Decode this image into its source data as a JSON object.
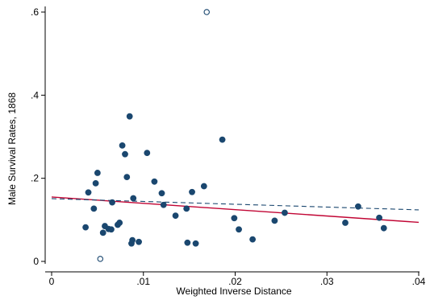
{
  "chart_data": {
    "type": "scatter",
    "xlabel": "Weighted Inverse Distance",
    "ylabel": "Male Survival Rates, 1868",
    "xlim": [
      0,
      0.04
    ],
    "ylim": [
      0,
      0.6
    ],
    "x_ticks": [
      {
        "value": 0,
        "label": "0"
      },
      {
        "value": 0.01,
        "label": ".01"
      },
      {
        "value": 0.02,
        "label": ".02"
      },
      {
        "value": 0.03,
        "label": ".03"
      },
      {
        "value": 0.04,
        "label": ".04"
      }
    ],
    "y_ticks": [
      {
        "value": 0,
        "label": "0"
      },
      {
        "value": 0.2,
        "label": ".2"
      },
      {
        "value": 0.4,
        "label": ".4"
      },
      {
        "value": 0.6,
        "label": ".6"
      }
    ],
    "grid": false,
    "colors": {
      "points": "#1a476f",
      "solid_fit": "#c10534",
      "dashed_fit": "#1a476f"
    },
    "points": [
      {
        "x": 0.0037,
        "y": 0.082
      },
      {
        "x": 0.004,
        "y": 0.166
      },
      {
        "x": 0.0046,
        "y": 0.127
      },
      {
        "x": 0.0048,
        "y": 0.188
      },
      {
        "x": 0.005,
        "y": 0.213
      },
      {
        "x": 0.0056,
        "y": 0.069
      },
      {
        "x": 0.0058,
        "y": 0.085
      },
      {
        "x": 0.0062,
        "y": 0.078
      },
      {
        "x": 0.0065,
        "y": 0.077
      },
      {
        "x": 0.0066,
        "y": 0.142
      },
      {
        "x": 0.0072,
        "y": 0.088
      },
      {
        "x": 0.0074,
        "y": 0.093
      },
      {
        "x": 0.0077,
        "y": 0.279
      },
      {
        "x": 0.008,
        "y": 0.258
      },
      {
        "x": 0.0082,
        "y": 0.203
      },
      {
        "x": 0.0085,
        "y": 0.349
      },
      {
        "x": 0.0087,
        "y": 0.043
      },
      {
        "x": 0.0088,
        "y": 0.051
      },
      {
        "x": 0.0089,
        "y": 0.152
      },
      {
        "x": 0.0095,
        "y": 0.047
      },
      {
        "x": 0.0104,
        "y": 0.261
      },
      {
        "x": 0.0112,
        "y": 0.192
      },
      {
        "x": 0.012,
        "y": 0.164
      },
      {
        "x": 0.0122,
        "y": 0.136
      },
      {
        "x": 0.0135,
        "y": 0.11
      },
      {
        "x": 0.0147,
        "y": 0.127
      },
      {
        "x": 0.0148,
        "y": 0.045
      },
      {
        "x": 0.0153,
        "y": 0.167
      },
      {
        "x": 0.0157,
        "y": 0.043
      },
      {
        "x": 0.0166,
        "y": 0.181
      },
      {
        "x": 0.0186,
        "y": 0.293
      },
      {
        "x": 0.0199,
        "y": 0.104
      },
      {
        "x": 0.0204,
        "y": 0.077
      },
      {
        "x": 0.0219,
        "y": 0.053
      },
      {
        "x": 0.0243,
        "y": 0.098
      },
      {
        "x": 0.0254,
        "y": 0.117
      },
      {
        "x": 0.032,
        "y": 0.093
      },
      {
        "x": 0.0334,
        "y": 0.132
      },
      {
        "x": 0.0357,
        "y": 0.105
      },
      {
        "x": 0.0362,
        "y": 0.08
      }
    ],
    "outliers": [
      {
        "x": 0.0053,
        "y": 0.006
      },
      {
        "x": 0.0169,
        "y": 0.6
      }
    ],
    "fit_lines": [
      {
        "style": "solid",
        "x": [
          0,
          0.04
        ],
        "y": [
          0.155,
          0.094
        ]
      },
      {
        "style": "dashed",
        "x": [
          0,
          0.04
        ],
        "y": [
          0.151,
          0.124
        ]
      }
    ]
  }
}
